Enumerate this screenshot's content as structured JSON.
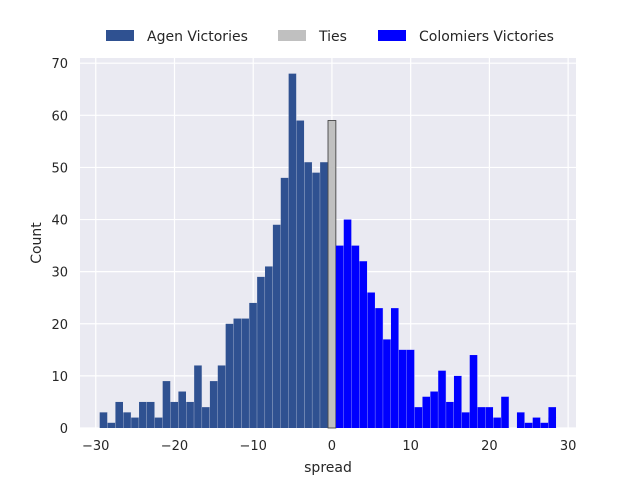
{
  "chart_data": {
    "type": "bar",
    "xlabel": "spread",
    "ylabel": "Count",
    "xlim": [
      -32,
      31
    ],
    "ylim": [
      0,
      71
    ],
    "xticks": [
      -30,
      -20,
      -10,
      0,
      10,
      20,
      30
    ],
    "yticks": [
      0,
      10,
      20,
      30,
      40,
      50,
      60,
      70
    ],
    "grid": true,
    "legend_position": "top-center",
    "series": [
      {
        "name": "Agen Victories",
        "color": "#2f5191",
        "x": [
          -29,
          -28,
          -27,
          -26,
          -25,
          -24,
          -23,
          -22,
          -21,
          -20,
          -19,
          -18,
          -17,
          -16,
          -15,
          -14,
          -13,
          -12,
          -11,
          -10,
          -9,
          -8,
          -7,
          -6,
          -5,
          -4,
          -3,
          -2,
          -1
        ],
        "values": [
          3,
          1,
          5,
          3,
          2,
          5,
          5,
          2,
          9,
          5,
          7,
          5,
          12,
          4,
          9,
          12,
          20,
          21,
          21,
          24,
          29,
          31,
          39,
          48,
          68,
          59,
          51,
          49,
          51
        ]
      },
      {
        "name": "Ties",
        "color": "#c0c0c0",
        "x": [
          0
        ],
        "values": [
          59
        ]
      },
      {
        "name": "Colomiers Victories",
        "color": "#0000ff",
        "x": [
          1,
          2,
          3,
          4,
          5,
          6,
          7,
          8,
          9,
          10,
          11,
          12,
          13,
          14,
          15,
          16,
          17,
          18,
          19,
          20,
          21,
          22,
          23,
          24,
          25,
          26,
          27,
          28
        ],
        "values": [
          35,
          40,
          35,
          32,
          26,
          23,
          17,
          23,
          15,
          15,
          4,
          6,
          7,
          11,
          5,
          10,
          3,
          14,
          4,
          4,
          2,
          6,
          0,
          3,
          1,
          2,
          1,
          4
        ]
      }
    ],
    "extra_bars": [
      {
        "x": 28,
        "value": 2,
        "series": "Colomiers Victories"
      }
    ]
  }
}
